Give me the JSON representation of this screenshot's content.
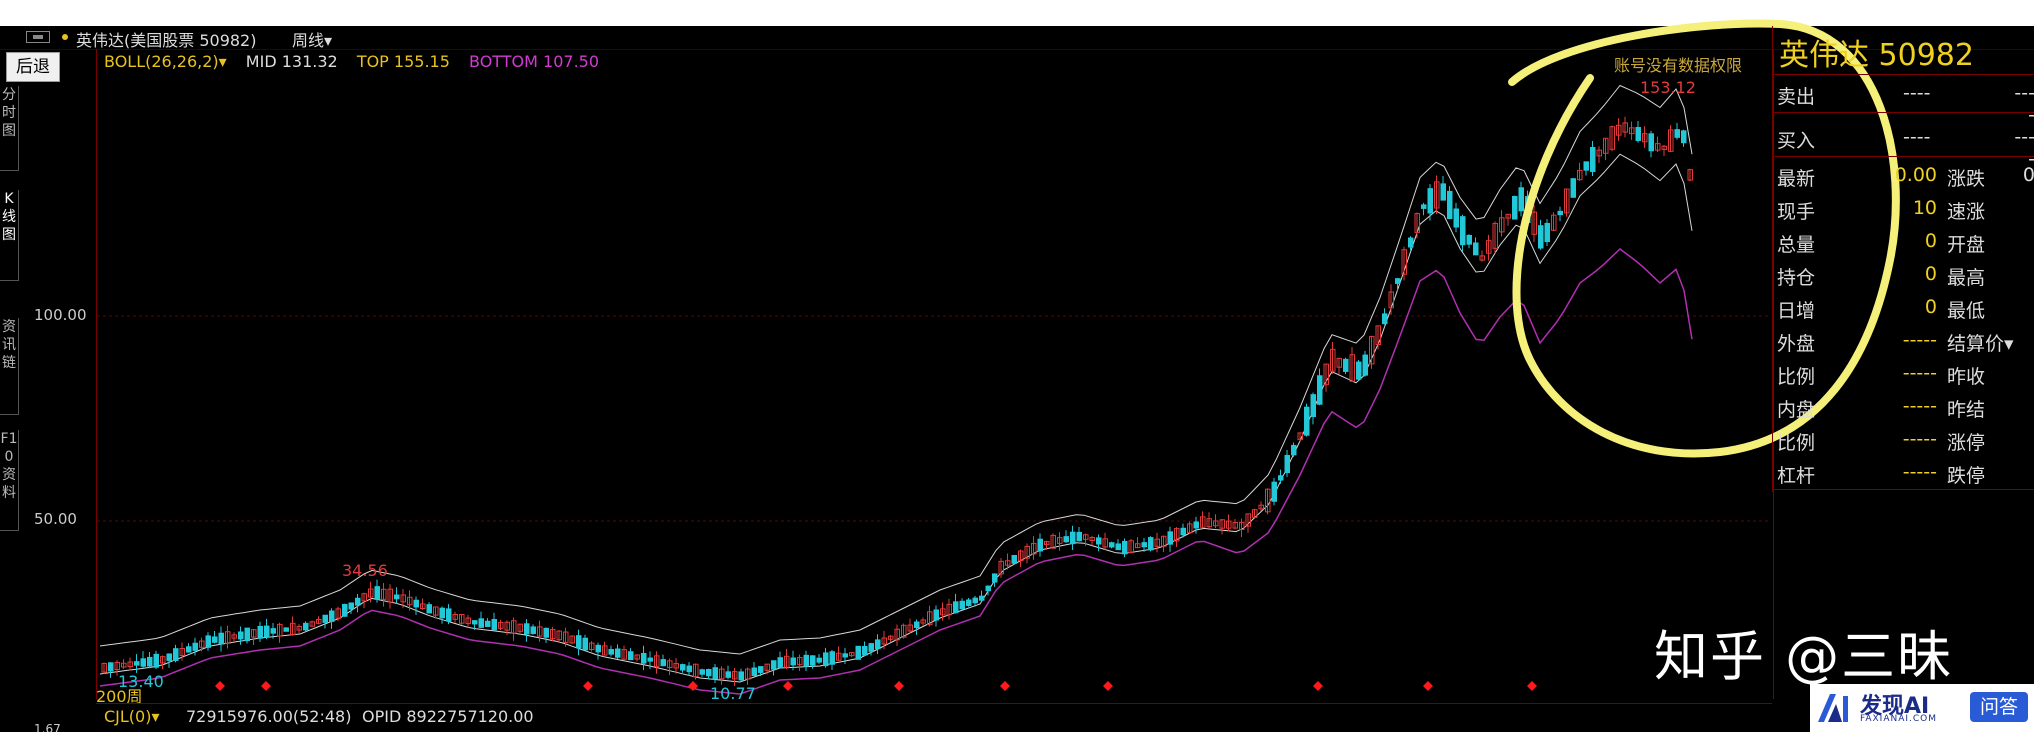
{
  "window": {
    "title": "英伟达(美国股票 50982)",
    "period": "周线▾"
  },
  "left_nav": {
    "back": "后退",
    "tabs": [
      "分时图",
      "K线图",
      "资讯链",
      "F10资料"
    ]
  },
  "indicator": {
    "boll": "BOLL(26,26,2)▾",
    "mid": "MID 131.32",
    "top": "TOP 155.15",
    "bottom": "BOTTOM 107.50"
  },
  "permission_notice": "账号没有数据权限",
  "y_axis": [
    "100.00",
    "50.00",
    "1.67"
  ],
  "annotations": {
    "high": "153.12",
    "local_high": "34.56",
    "low1": "13.40",
    "low2": "10.77",
    "period_mark": "200周"
  },
  "volume": {
    "label": "CJL(0)▾",
    "value": "72915976.00(52:48)",
    "opid": "OPID 8922757120.00"
  },
  "quote": {
    "title": "英伟达  50982",
    "sell": {
      "label": "卖出",
      "v1": "----",
      "v2": "----"
    },
    "buy": {
      "label": "买入",
      "v1": "----",
      "v2": "----"
    },
    "rows": [
      {
        "l": "最新",
        "v": "0.00",
        "r": "涨跌",
        "rv": "0"
      },
      {
        "l": "现手",
        "v": "10",
        "r": "速涨",
        "rv": ""
      },
      {
        "l": "总量",
        "v": "0",
        "r": "开盘",
        "rv": ""
      },
      {
        "l": "持仓",
        "v": "0",
        "r": "最高",
        "rv": ""
      },
      {
        "l": "日增",
        "v": "0",
        "r": "最低",
        "rv": ""
      },
      {
        "l": "外盘",
        "v": "-----",
        "r": "结算价▾",
        "rv": ""
      },
      {
        "l": "比例",
        "v": "-----",
        "r": "昨收",
        "rv": ""
      },
      {
        "l": "内盘",
        "v": "-----",
        "r": "昨结",
        "rv": ""
      },
      {
        "l": "比例",
        "v": "-----",
        "r": "涨停",
        "rv": ""
      },
      {
        "l": "杠杆",
        "v": "-----",
        "r": "跌停",
        "rv": ""
      }
    ]
  },
  "watermark": "知乎 @三昧",
  "badge": {
    "title": "发现AI",
    "sub": "FAXIANAI.COM",
    "btn": "问答"
  },
  "colors": {
    "up": "#e23a3a",
    "down": "#22c8d8",
    "boll_line": "#e0e0e0",
    "bottom_line": "#b030b0",
    "highlight": "#f4f07a"
  }
}
